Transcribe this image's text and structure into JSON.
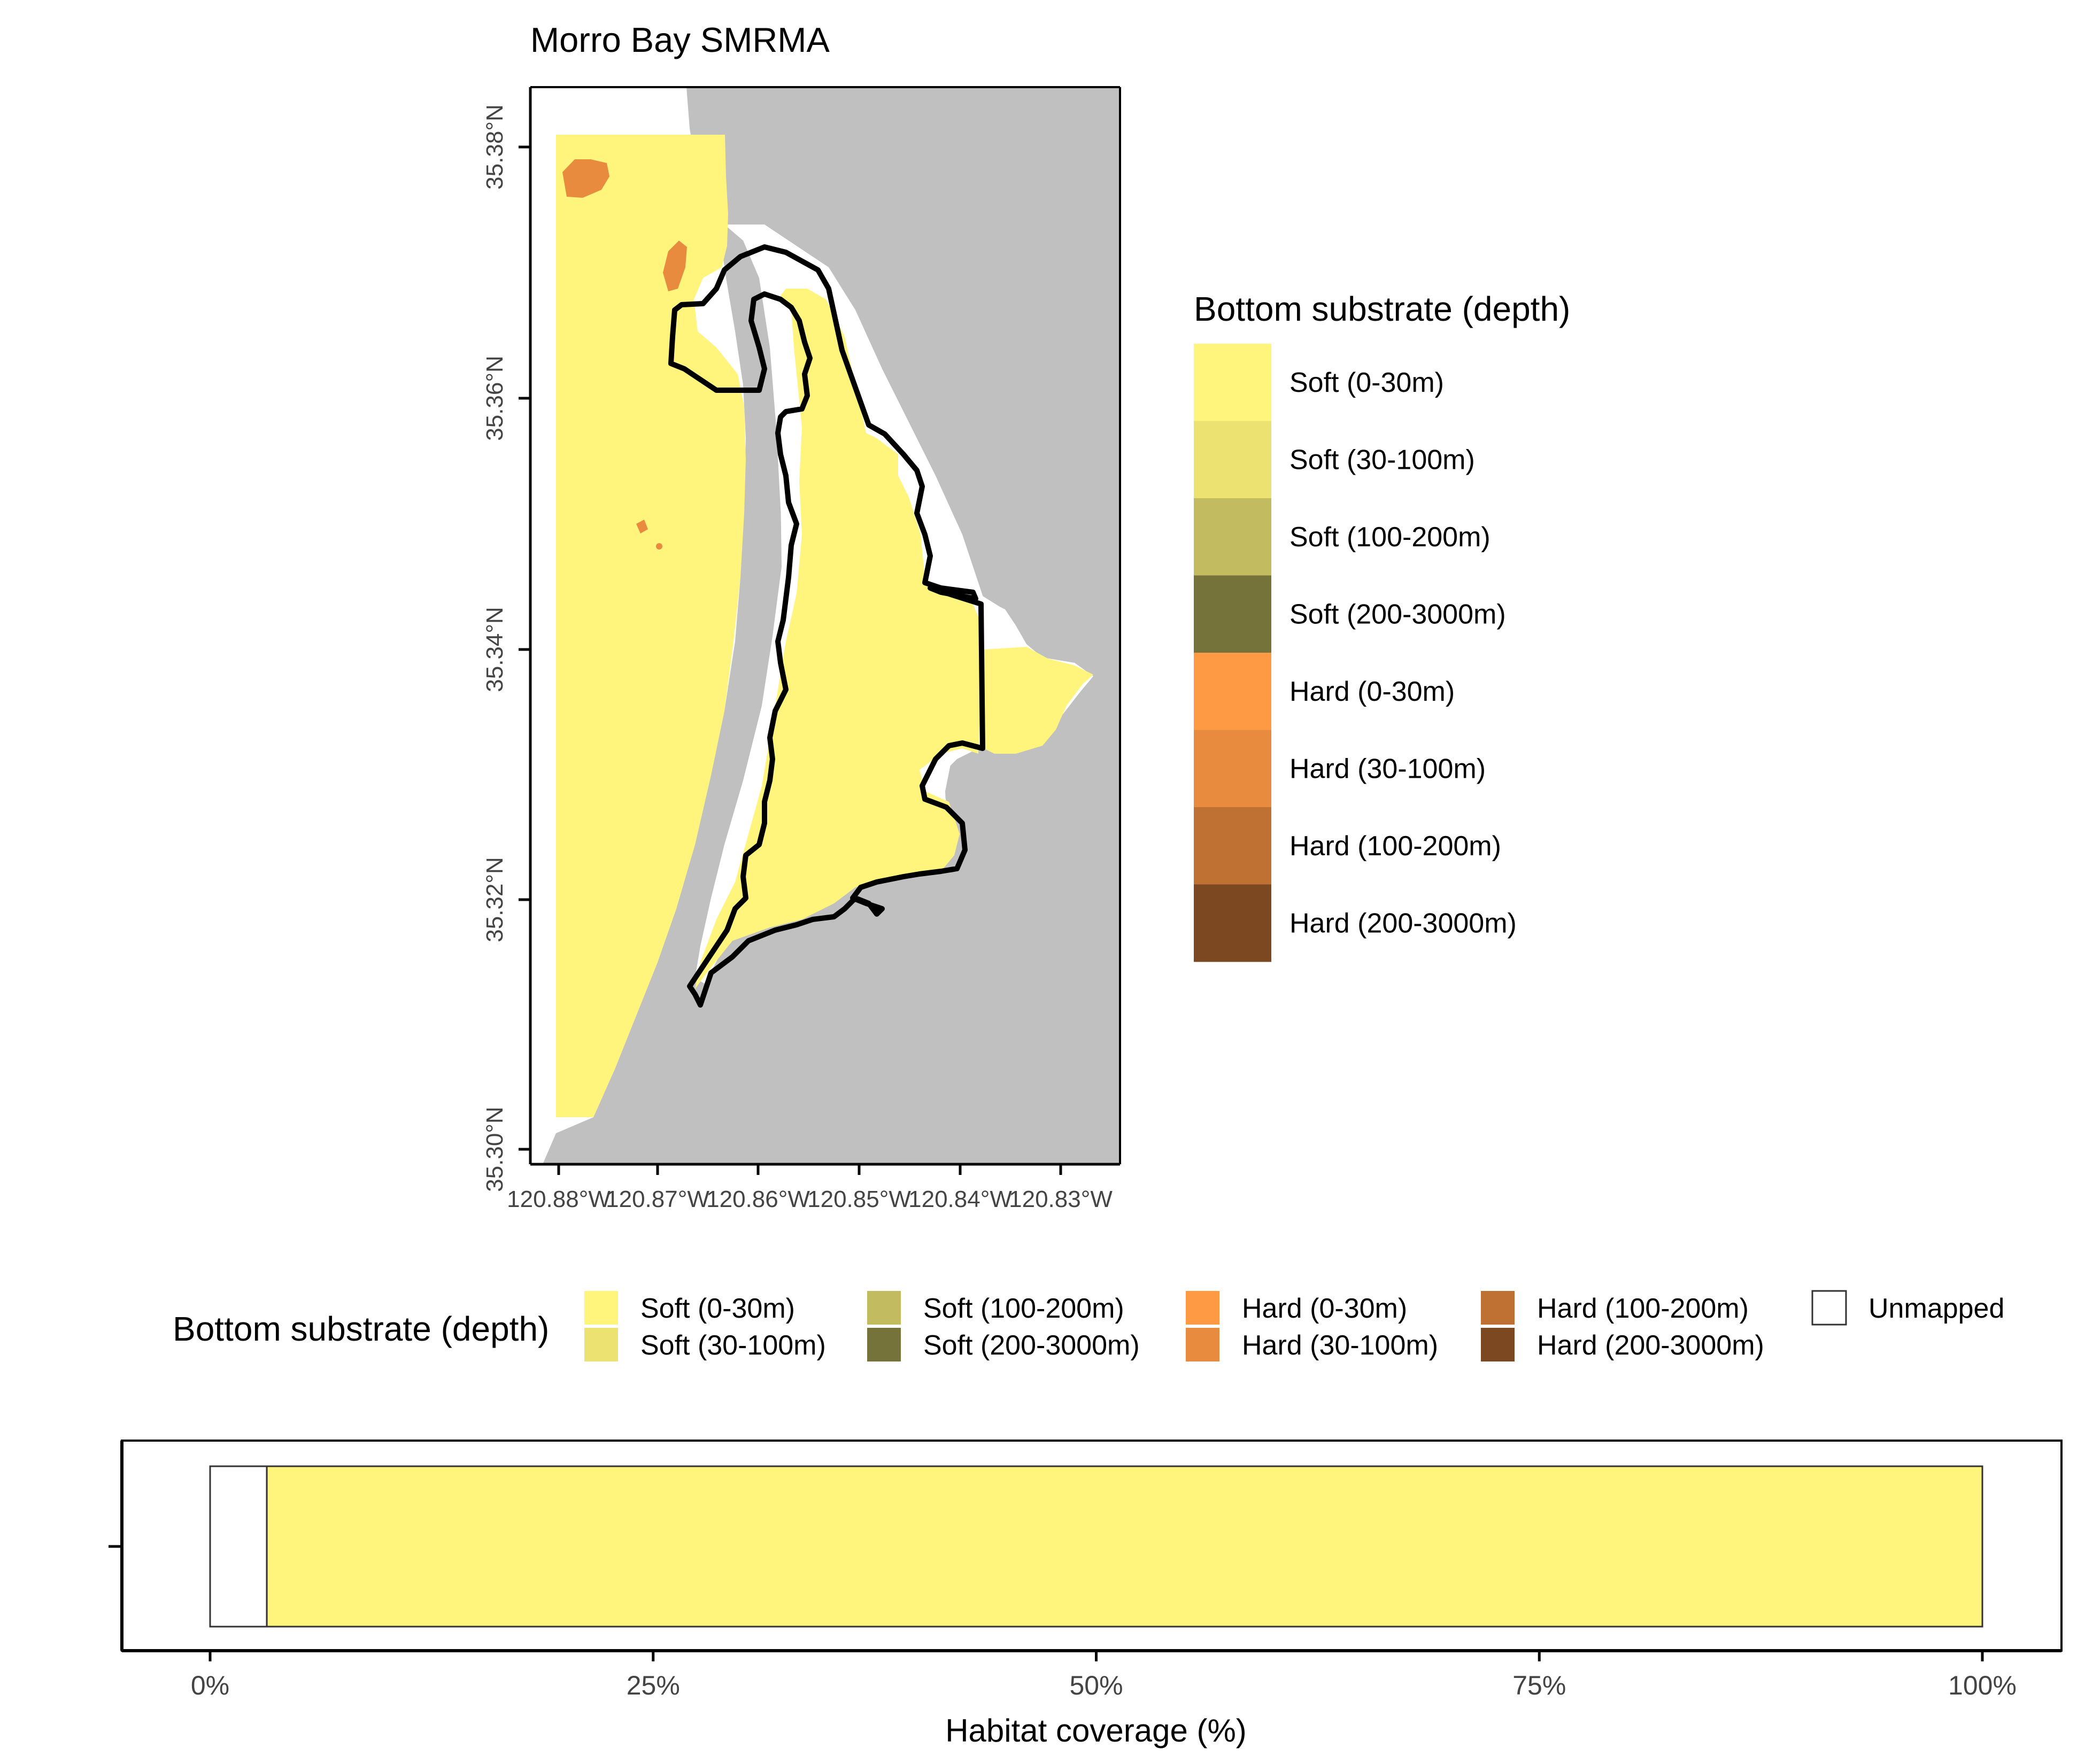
{
  "title": "Morro Bay SMRMA",
  "map": {
    "lat_ticks": [
      "35.38°N",
      "35.36°N",
      "35.34°N",
      "35.32°N",
      "35.30°N"
    ],
    "lon_ticks": [
      "120.88°W",
      "120.87°W",
      "120.86°W",
      "120.85°W",
      "120.84°W",
      "120.83°W"
    ],
    "colors": {
      "land": "#c0c0c0",
      "water": "#ffffff",
      "boundary": "#000000"
    }
  },
  "legend_side": {
    "title": "Bottom substrate (depth)",
    "items": [
      {
        "label": "Soft (0-30m)",
        "color": "#fff47c"
      },
      {
        "label": "Soft (30-100m)",
        "color": "#ece271"
      },
      {
        "label": "Soft (100-200m)",
        "color": "#c3bb5f"
      },
      {
        "label": "Soft (200-3000m)",
        "color": "#76733a"
      },
      {
        "label": "Hard (0-30m)",
        "color": "#fe9a43"
      },
      {
        "label": "Hard (30-100m)",
        "color": "#e88b3e"
      },
      {
        "label": "Hard (100-200m)",
        "color": "#bf7133"
      },
      {
        "label": "Hard (200-3000m)",
        "color": "#7b4822"
      }
    ]
  },
  "legend_bottom": {
    "title": "Bottom substrate (depth)",
    "items": [
      {
        "label": "Soft (0-30m)",
        "color": "#fff47c"
      },
      {
        "label": "Soft (30-100m)",
        "color": "#ece271"
      },
      {
        "label": "Soft (100-200m)",
        "color": "#c3bb5f"
      },
      {
        "label": "Soft (200-3000m)",
        "color": "#76733a"
      },
      {
        "label": "Hard (0-30m)",
        "color": "#fe9a43"
      },
      {
        "label": "Hard (30-100m)",
        "color": "#e88b3e"
      },
      {
        "label": "Hard (100-200m)",
        "color": "#bf7133"
      },
      {
        "label": "Hard (200-3000m)",
        "color": "#7b4822"
      },
      {
        "label": "Unmapped",
        "color": "#ffffff"
      }
    ]
  },
  "chart_data": {
    "type": "bar",
    "orientation": "horizontal",
    "stacked": true,
    "xlabel": "Habitat coverage (%)",
    "xlim": [
      0,
      100
    ],
    "x_ticks": [
      "0%",
      "25%",
      "50%",
      "75%",
      "100%"
    ],
    "series": [
      {
        "name": "Unmapped",
        "value": 3.2,
        "color": "#ffffff"
      },
      {
        "name": "Soft (0-30m)",
        "value": 96.8,
        "color": "#fff47c"
      }
    ]
  }
}
